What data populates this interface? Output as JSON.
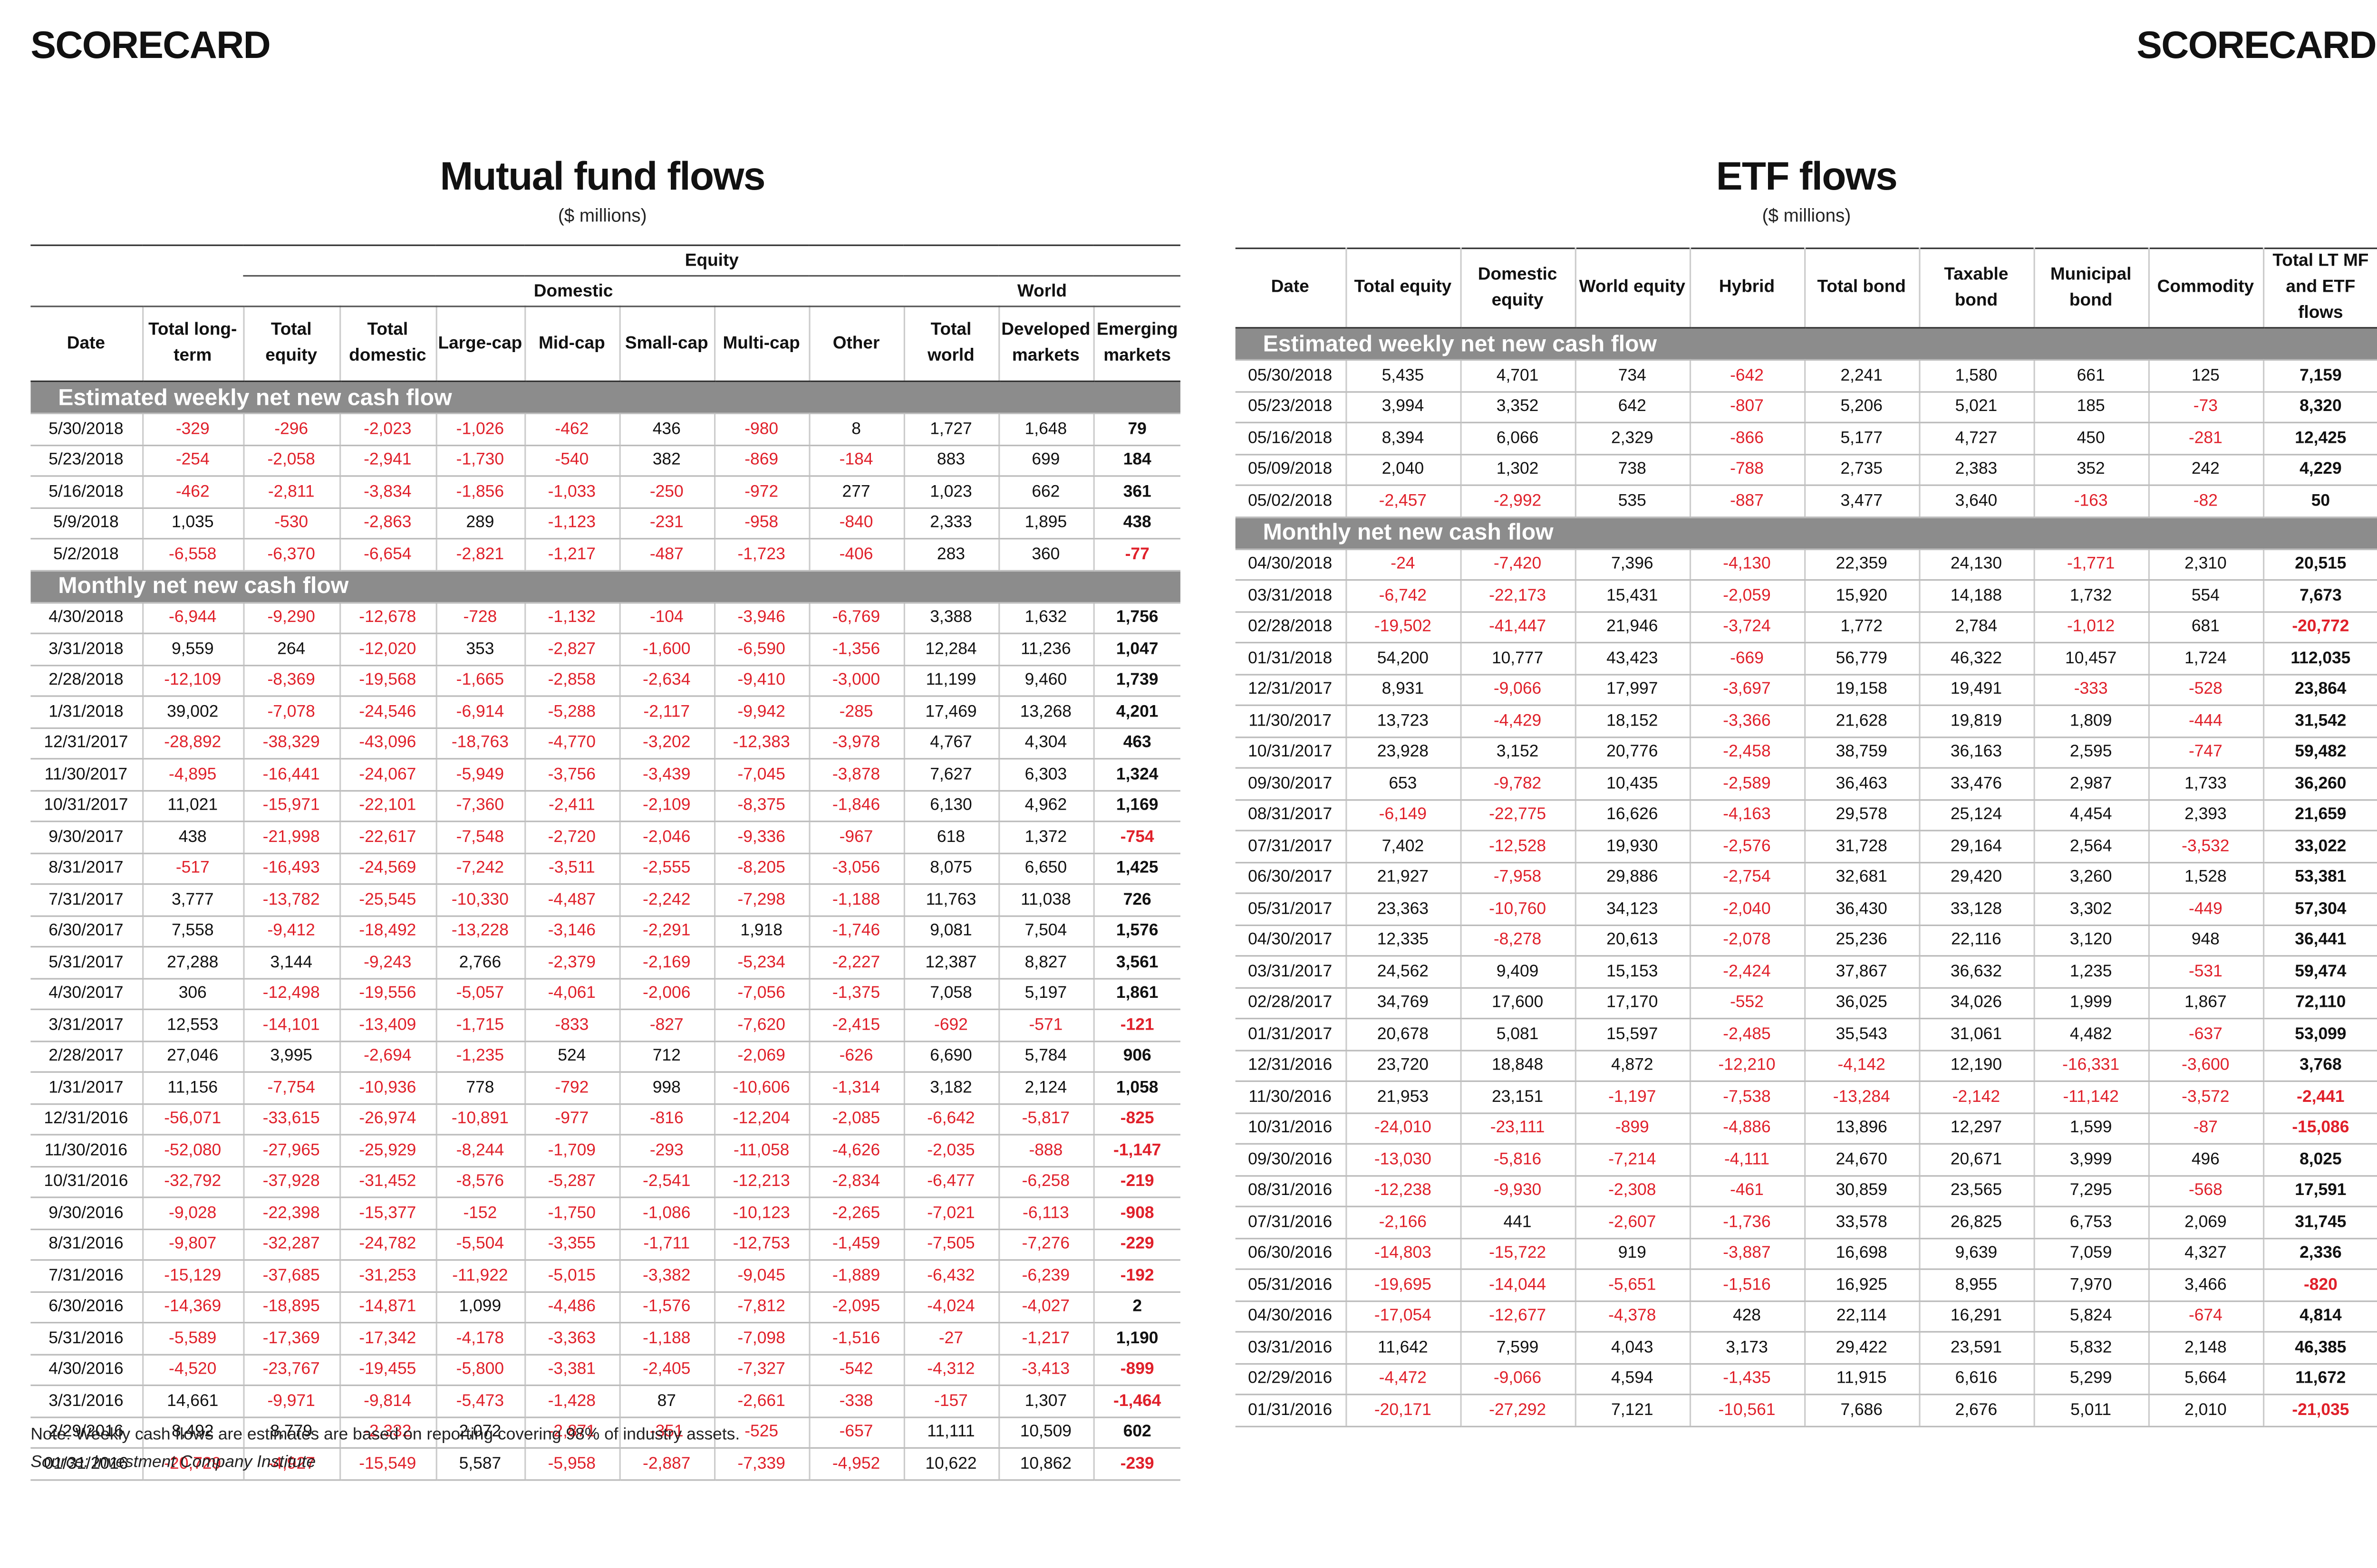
{
  "left": {
    "header": "SCORECARD",
    "title": "Mutual fund flows",
    "subtitle": "($ millions)",
    "group_headers": [
      "Equity",
      "Domestic",
      "World"
    ],
    "columns": [
      "Date",
      "Total long-term",
      "Total equity",
      "Total domestic",
      "Large-cap",
      "Mid-cap",
      "Small-cap",
      "Multi-cap",
      "Other",
      "Total world",
      "Developed markets",
      "Emerging markets"
    ],
    "sections": [
      {
        "label": "Estimated weekly net new cash flow",
        "rows": [
          [
            "5/30/2018",
            "-329",
            "-296",
            "-2,023",
            "-1,026",
            "-462",
            "436",
            "-980",
            "8",
            "1,727",
            "1,648",
            "79"
          ],
          [
            "5/23/2018",
            "-254",
            "-2,058",
            "-2,941",
            "-1,730",
            "-540",
            "382",
            "-869",
            "-184",
            "883",
            "699",
            "184"
          ],
          [
            "5/16/2018",
            "-462",
            "-2,811",
            "-3,834",
            "-1,856",
            "-1,033",
            "-250",
            "-972",
            "277",
            "1,023",
            "662",
            "361"
          ],
          [
            "5/9/2018",
            "1,035",
            "-530",
            "-2,863",
            "289",
            "-1,123",
            "-231",
            "-958",
            "-840",
            "2,333",
            "1,895",
            "438"
          ],
          [
            "5/2/2018",
            "-6,558",
            "-6,370",
            "-6,654",
            "-2,821",
            "-1,217",
            "-487",
            "-1,723",
            "-406",
            "283",
            "360",
            "-77"
          ]
        ]
      },
      {
        "label": "Monthly net new cash flow",
        "rows": [
          [
            "4/30/2018",
            "-6,944",
            "-9,290",
            "-12,678",
            "-728",
            "-1,132",
            "-104",
            "-3,946",
            "-6,769",
            "3,388",
            "1,632",
            "1,756"
          ],
          [
            "3/31/2018",
            "9,559",
            "264",
            "-12,020",
            "353",
            "-2,827",
            "-1,600",
            "-6,590",
            "-1,356",
            "12,284",
            "11,236",
            "1,047"
          ],
          [
            "2/28/2018",
            "-12,109",
            "-8,369",
            "-19,568",
            "-1,665",
            "-2,858",
            "-2,634",
            "-9,410",
            "-3,000",
            "11,199",
            "9,460",
            "1,739"
          ],
          [
            "1/31/2018",
            "39,002",
            "-7,078",
            "-24,546",
            "-6,914",
            "-5,288",
            "-2,117",
            "-9,942",
            "-285",
            "17,469",
            "13,268",
            "4,201"
          ],
          [
            "12/31/2017",
            "-28,892",
            "-38,329",
            "-43,096",
            "-18,763",
            "-4,770",
            "-3,202",
            "-12,383",
            "-3,978",
            "4,767",
            "4,304",
            "463"
          ],
          [
            "11/30/2017",
            "-4,895",
            "-16,441",
            "-24,067",
            "-5,949",
            "-3,756",
            "-3,439",
            "-7,045",
            "-3,878",
            "7,627",
            "6,303",
            "1,324"
          ],
          [
            "10/31/2017",
            "11,021",
            "-15,971",
            "-22,101",
            "-7,360",
            "-2,411",
            "-2,109",
            "-8,375",
            "-1,846",
            "6,130",
            "4,962",
            "1,169"
          ],
          [
            "9/30/2017",
            "438",
            "-21,998",
            "-22,617",
            "-7,548",
            "-2,720",
            "-2,046",
            "-9,336",
            "-967",
            "618",
            "1,372",
            "-754"
          ],
          [
            "8/31/2017",
            "-517",
            "-16,493",
            "-24,569",
            "-7,242",
            "-3,511",
            "-2,555",
            "-8,205",
            "-3,056",
            "8,075",
            "6,650",
            "1,425"
          ],
          [
            "7/31/2017",
            "3,777",
            "-13,782",
            "-25,545",
            "-10,330",
            "-4,487",
            "-2,242",
            "-7,298",
            "-1,188",
            "11,763",
            "11,038",
            "726"
          ],
          [
            "6/30/2017",
            "7,558",
            "-9,412",
            "-18,492",
            "-13,228",
            "-3,146",
            "-2,291",
            "1,918",
            "-1,746",
            "9,081",
            "7,504",
            "1,576"
          ],
          [
            "5/31/2017",
            "27,288",
            "3,144",
            "-9,243",
            "2,766",
            "-2,379",
            "-2,169",
            "-5,234",
            "-2,227",
            "12,387",
            "8,827",
            "3,561"
          ],
          [
            "4/30/2017",
            "306",
            "-12,498",
            "-19,556",
            "-5,057",
            "-4,061",
            "-2,006",
            "-7,056",
            "-1,375",
            "7,058",
            "5,197",
            "1,861"
          ],
          [
            "3/31/2017",
            "12,553",
            "-14,101",
            "-13,409",
            "-1,715",
            "-833",
            "-827",
            "-7,620",
            "-2,415",
            "-692",
            "-571",
            "-121"
          ],
          [
            "2/28/2017",
            "27,046",
            "3,995",
            "-2,694",
            "-1,235",
            "524",
            "712",
            "-2,069",
            "-626",
            "6,690",
            "5,784",
            "906"
          ],
          [
            "1/31/2017",
            "11,156",
            "-7,754",
            "-10,936",
            "778",
            "-792",
            "998",
            "-10,606",
            "-1,314",
            "3,182",
            "2,124",
            "1,058"
          ],
          [
            "12/31/2016",
            "-56,071",
            "-33,615",
            "-26,974",
            "-10,891",
            "-977",
            "-816",
            "-12,204",
            "-2,085",
            "-6,642",
            "-5,817",
            "-825"
          ],
          [
            "11/30/2016",
            "-52,080",
            "-27,965",
            "-25,929",
            "-8,244",
            "-1,709",
            "-293",
            "-11,058",
            "-4,626",
            "-2,035",
            "-888",
            "-1,147"
          ],
          [
            "10/31/2016",
            "-32,792",
            "-37,928",
            "-31,452",
            "-8,576",
            "-5,287",
            "-2,541",
            "-12,213",
            "-2,834",
            "-6,477",
            "-6,258",
            "-219"
          ],
          [
            "9/30/2016",
            "-9,028",
            "-22,398",
            "-15,377",
            "-152",
            "-1,750",
            "-1,086",
            "-10,123",
            "-2,265",
            "-7,021",
            "-6,113",
            "-908"
          ],
          [
            "8/31/2016",
            "-9,807",
            "-32,287",
            "-24,782",
            "-5,504",
            "-3,355",
            "-1,711",
            "-12,753",
            "-1,459",
            "-7,505",
            "-7,276",
            "-229"
          ],
          [
            "7/31/2016",
            "-15,129",
            "-37,685",
            "-31,253",
            "-11,922",
            "-5,015",
            "-3,382",
            "-9,045",
            "-1,889",
            "-6,432",
            "-6,239",
            "-192"
          ],
          [
            "6/30/2016",
            "-14,369",
            "-18,895",
            "-14,871",
            "1,099",
            "-4,486",
            "-1,576",
            "-7,812",
            "-2,095",
            "-4,024",
            "-4,027",
            "2"
          ],
          [
            "5/31/2016",
            "-5,589",
            "-17,369",
            "-17,342",
            "-4,178",
            "-3,363",
            "-1,188",
            "-7,098",
            "-1,516",
            "-27",
            "-1,217",
            "1,190"
          ],
          [
            "4/30/2016",
            "-4,520",
            "-23,767",
            "-19,455",
            "-5,800",
            "-3,381",
            "-2,405",
            "-7,327",
            "-542",
            "-4,312",
            "-3,413",
            "-899"
          ],
          [
            "3/31/2016",
            "14,661",
            "-9,971",
            "-9,814",
            "-5,473",
            "-1,428",
            "87",
            "-2,661",
            "-338",
            "-157",
            "1,307",
            "-1,464"
          ],
          [
            "2/29/2016",
            "8,492",
            "8,779",
            "-2,332",
            "2,072",
            "-2,871",
            "-351",
            "-525",
            "-657",
            "11,111",
            "10,509",
            "602"
          ],
          [
            "01/31/2016",
            "-20,729",
            "-4,927",
            "-15,549",
            "5,587",
            "-5,958",
            "-2,887",
            "-7,339",
            "-4,952",
            "10,622",
            "10,862",
            "-239"
          ]
        ]
      }
    ],
    "note": "Note: Weekly cash flows are estimates are based on reporting covering 98% of industry assets.",
    "source": "Source: Investment Company Institute"
  },
  "right": {
    "header": "SCORECARD",
    "title": "ETF flows",
    "subtitle": "($ millions)",
    "columns": [
      "Date",
      "Total equity",
      "Domestic equity",
      "World equity",
      "Hybrid",
      "Total bond",
      "Taxable bond",
      "Municipal bond",
      "Commodity",
      "Total LT MF and ETF flows"
    ],
    "sections": [
      {
        "label": "Estimated weekly net new cash flow",
        "rows": [
          [
            "05/30/2018",
            "5,435",
            "4,701",
            "734",
            "-642",
            "2,241",
            "1,580",
            "661",
            "125",
            "7,159"
          ],
          [
            "05/23/2018",
            "3,994",
            "3,352",
            "642",
            "-807",
            "5,206",
            "5,021",
            "185",
            "-73",
            "8,320"
          ],
          [
            "05/16/2018",
            "8,394",
            "6,066",
            "2,329",
            "-866",
            "5,177",
            "4,727",
            "450",
            "-281",
            "12,425"
          ],
          [
            "05/09/2018",
            "2,040",
            "1,302",
            "738",
            "-788",
            "2,735",
            "2,383",
            "352",
            "242",
            "4,229"
          ],
          [
            "05/02/2018",
            "-2,457",
            "-2,992",
            "535",
            "-887",
            "3,477",
            "3,640",
            "-163",
            "-82",
            "50"
          ]
        ]
      },
      {
        "label": "Monthly net new cash flow",
        "rows": [
          [
            "04/30/2018",
            "-24",
            "-7,420",
            "7,396",
            "-4,130",
            "22,359",
            "24,130",
            "-1,771",
            "2,310",
            "20,515"
          ],
          [
            "03/31/2018",
            "-6,742",
            "-22,173",
            "15,431",
            "-2,059",
            "15,920",
            "14,188",
            "1,732",
            "554",
            "7,673"
          ],
          [
            "02/28/2018",
            "-19,502",
            "-41,447",
            "21,946",
            "-3,724",
            "1,772",
            "2,784",
            "-1,012",
            "681",
            "-20,772"
          ],
          [
            "01/31/2018",
            "54,200",
            "10,777",
            "43,423",
            "-669",
            "56,779",
            "46,322",
            "10,457",
            "1,724",
            "112,035"
          ],
          [
            "12/31/2017",
            "8,931",
            "-9,066",
            "17,997",
            "-3,697",
            "19,158",
            "19,491",
            "-333",
            "-528",
            "23,864"
          ],
          [
            "11/30/2017",
            "13,723",
            "-4,429",
            "18,152",
            "-3,366",
            "21,628",
            "19,819",
            "1,809",
            "-444",
            "31,542"
          ],
          [
            "10/31/2017",
            "23,928",
            "3,152",
            "20,776",
            "-2,458",
            "38,759",
            "36,163",
            "2,595",
            "-747",
            "59,482"
          ],
          [
            "09/30/2017",
            "653",
            "-9,782",
            "10,435",
            "-2,589",
            "36,463",
            "33,476",
            "2,987",
            "1,733",
            "36,260"
          ],
          [
            "08/31/2017",
            "-6,149",
            "-22,775",
            "16,626",
            "-4,163",
            "29,578",
            "25,124",
            "4,454",
            "2,393",
            "21,659"
          ],
          [
            "07/31/2017",
            "7,402",
            "-12,528",
            "19,930",
            "-2,576",
            "31,728",
            "29,164",
            "2,564",
            "-3,532",
            "33,022"
          ],
          [
            "06/30/2017",
            "21,927",
            "-7,958",
            "29,886",
            "-2,754",
            "32,681",
            "29,420",
            "3,260",
            "1,528",
            "53,381"
          ],
          [
            "05/31/2017",
            "23,363",
            "-10,760",
            "34,123",
            "-2,040",
            "36,430",
            "33,128",
            "3,302",
            "-449",
            "57,304"
          ],
          [
            "04/30/2017",
            "12,335",
            "-8,278",
            "20,613",
            "-2,078",
            "25,236",
            "22,116",
            "3,120",
            "948",
            "36,441"
          ],
          [
            "03/31/2017",
            "24,562",
            "9,409",
            "15,153",
            "-2,424",
            "37,867",
            "36,632",
            "1,235",
            "-531",
            "59,474"
          ],
          [
            "02/28/2017",
            "34,769",
            "17,600",
            "17,170",
            "-552",
            "36,025",
            "34,026",
            "1,999",
            "1,867",
            "72,110"
          ],
          [
            "01/31/2017",
            "20,678",
            "5,081",
            "15,597",
            "-2,485",
            "35,543",
            "31,061",
            "4,482",
            "-637",
            "53,099"
          ],
          [
            "12/31/2016",
            "23,720",
            "18,848",
            "4,872",
            "-12,210",
            "-4,142",
            "12,190",
            "-16,331",
            "-3,600",
            "3,768"
          ],
          [
            "11/30/2016",
            "21,953",
            "23,151",
            "-1,197",
            "-7,538",
            "-13,284",
            "-2,142",
            "-11,142",
            "-3,572",
            "-2,441"
          ],
          [
            "10/31/2016",
            "-24,010",
            "-23,111",
            "-899",
            "-4,886",
            "13,896",
            "12,297",
            "1,599",
            "-87",
            "-15,086"
          ],
          [
            "09/30/2016",
            "-13,030",
            "-5,816",
            "-7,214",
            "-4,111",
            "24,670",
            "20,671",
            "3,999",
            "496",
            "8,025"
          ],
          [
            "08/31/2016",
            "-12,238",
            "-9,930",
            "-2,308",
            "-461",
            "30,859",
            "23,565",
            "7,295",
            "-568",
            "17,591"
          ],
          [
            "07/31/2016",
            "-2,166",
            "441",
            "-2,607",
            "-1,736",
            "33,578",
            "26,825",
            "6,753",
            "2,069",
            "31,745"
          ],
          [
            "06/30/2016",
            "-14,803",
            "-15,722",
            "919",
            "-3,887",
            "16,698",
            "9,639",
            "7,059",
            "4,327",
            "2,336"
          ],
          [
            "05/31/2016",
            "-19,695",
            "-14,044",
            "-5,651",
            "-1,516",
            "16,925",
            "8,955",
            "7,970",
            "3,466",
            "-820"
          ],
          [
            "04/30/2016",
            "-17,054",
            "-12,677",
            "-4,378",
            "428",
            "22,114",
            "16,291",
            "5,824",
            "-674",
            "4,814"
          ],
          [
            "03/31/2016",
            "11,642",
            "7,599",
            "4,043",
            "3,173",
            "29,422",
            "23,591",
            "5,832",
            "2,148",
            "46,385"
          ],
          [
            "02/29/2016",
            "-4,472",
            "-9,066",
            "4,594",
            "-1,435",
            "11,915",
            "6,616",
            "5,299",
            "5,664",
            "11,672"
          ],
          [
            "01/31/2016",
            "-20,171",
            "-27,292",
            "7,121",
            "-10,561",
            "7,686",
            "2,676",
            "5,011",
            "2,010",
            "-21,035"
          ]
        ]
      }
    ]
  }
}
